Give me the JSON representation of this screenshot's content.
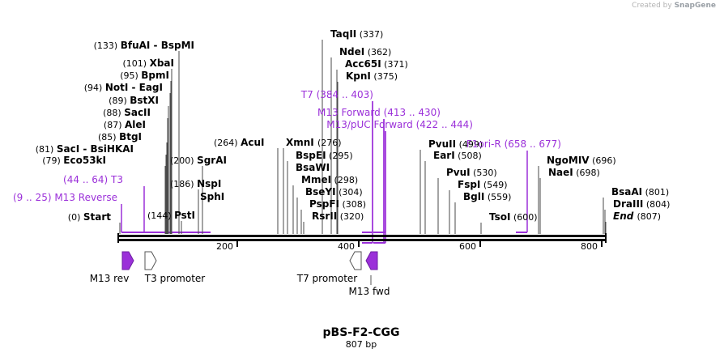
{
  "watermark": {
    "prefix": "Created by",
    "brand": "SnapGene"
  },
  "title": "pBS-F2-CGG",
  "length_label": "807 bp",
  "colors": {
    "site": "#000000",
    "primer": "#9b30d9",
    "backbone": "#000000"
  },
  "axis_ticks": [
    "200",
    "400",
    "600",
    "800"
  ],
  "enzyme_sites": [
    {
      "name": "Start",
      "pos": "(0)",
      "italic": true
    },
    {
      "name": "M13 Reverse",
      "pos": "(9 .. 25)",
      "primer": true,
      "name_first": true
    },
    {
      "name": "T3",
      "pos": "(44 .. 64)",
      "primer": true
    },
    {
      "name": "Eco53kI",
      "pos": "(79)"
    },
    {
      "name": "SacI  -  BsiHKAI",
      "pos": "(81)"
    },
    {
      "name": "BtgI",
      "pos": "(85)"
    },
    {
      "name": "AleI",
      "pos": "(87)"
    },
    {
      "name": "SacII",
      "pos": "(88)"
    },
    {
      "name": "BstXI",
      "pos": "(89)"
    },
    {
      "name": "NotI  -  EagI",
      "pos": "(94)"
    },
    {
      "name": "BpmI",
      "pos": "(95)"
    },
    {
      "name": "XbaI",
      "pos": "(101)"
    },
    {
      "name": "BfuAI  -  BspMI",
      "pos": "(133)"
    },
    {
      "name": "PstI",
      "pos": "(144)"
    },
    {
      "name": "SphI",
      "pos": ""
    },
    {
      "name": "NspI",
      "pos": "(186)"
    },
    {
      "name": "SgrAI",
      "pos": "(200)"
    },
    {
      "name": "AcuI",
      "pos": "(264)"
    },
    {
      "name": "XmnI",
      "pos": "(276)"
    },
    {
      "name": "BspEI",
      "pos": "(295)"
    },
    {
      "name": "BsaWI",
      "pos": ""
    },
    {
      "name": "MmeI",
      "pos": "(298)"
    },
    {
      "name": "BseYI",
      "pos": "(304)"
    },
    {
      "name": "PspFI",
      "pos": "(308)"
    },
    {
      "name": "RsrII",
      "pos": "(320)"
    },
    {
      "name": "TaqII",
      "pos": "(337)"
    },
    {
      "name": "NdeI",
      "pos": "(362)"
    },
    {
      "name": "Acc65I",
      "pos": "(371)"
    },
    {
      "name": "KpnI",
      "pos": "(375)"
    },
    {
      "name": "T7",
      "pos": "(384 .. 403)",
      "primer": true
    },
    {
      "name": "M13 Forward",
      "pos": "(413 .. 430)",
      "primer": true
    },
    {
      "name": "M13/pUC Forward",
      "pos": "(422 .. 444)",
      "primer": true
    },
    {
      "name": "PvuII",
      "pos": "(499)"
    },
    {
      "name": "EarI",
      "pos": "(508)"
    },
    {
      "name": "PvuI",
      "pos": "(530)"
    },
    {
      "name": "FspI",
      "pos": "(549)"
    },
    {
      "name": "BglI",
      "pos": "(559)"
    },
    {
      "name": "TsoI",
      "pos": "(600)"
    },
    {
      "name": "F1ori-R",
      "pos": "(658 .. 677)",
      "primer": true
    },
    {
      "name": "NgoMIV",
      "pos": "(696)"
    },
    {
      "name": "NaeI",
      "pos": "(698)"
    },
    {
      "name": "BsaAI",
      "pos": "(801)"
    },
    {
      "name": "DraIII",
      "pos": "(804)"
    },
    {
      "name": "End",
      "pos": "(807)",
      "italic": true
    }
  ],
  "features": [
    {
      "name": "M13 rev",
      "type": "filled",
      "direction": "right"
    },
    {
      "name": "T3 promoter",
      "type": "outline",
      "direction": "right"
    },
    {
      "name": "T7 promoter",
      "type": "outline",
      "direction": "left"
    },
    {
      "name": "M13 fwd",
      "type": "filled",
      "direction": "left"
    }
  ]
}
